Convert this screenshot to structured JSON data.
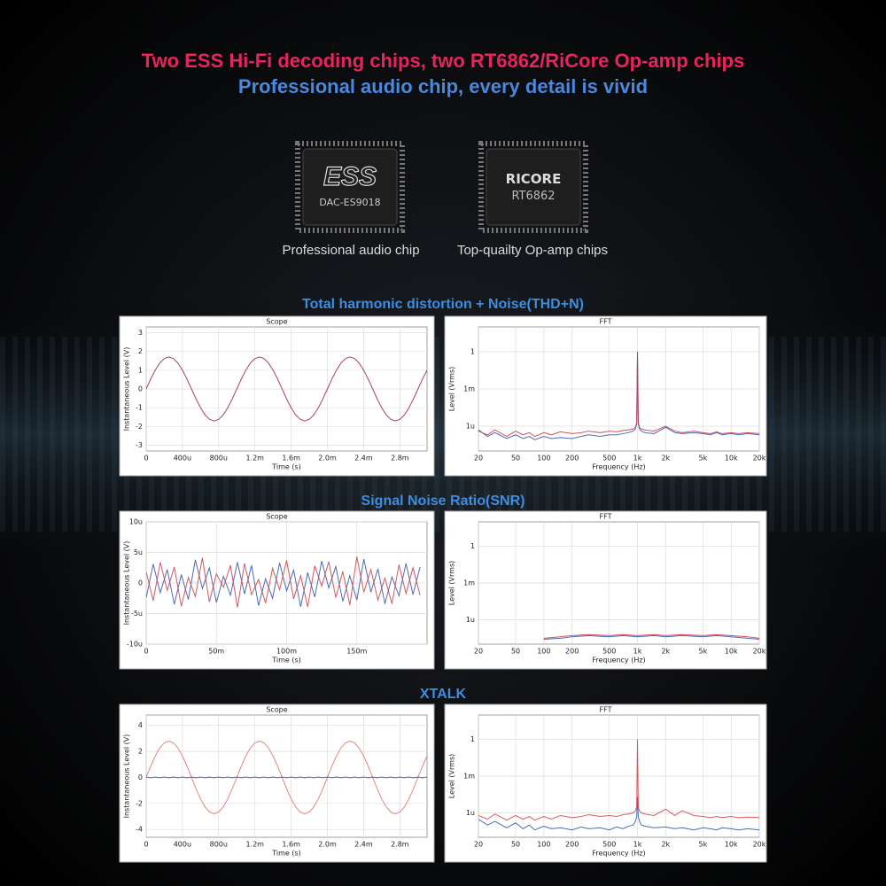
{
  "header": {
    "line1": "Two ESS Hi-Fi decoding chips, two RT6862/RiCore Op-amp chips",
    "line2": "Professional audio chip, every detail is vivid"
  },
  "chips": [
    {
      "logo": "ESS",
      "model": "DAC-ES9018",
      "caption": "Professional audio chip"
    },
    {
      "logo": "RICORE",
      "model": "RT6862",
      "caption": "Top-quailty Op-amp chips"
    }
  ],
  "sections": [
    "Total harmonic distortion + Noise(THD+N)",
    "Signal Noise Ratio(SNR)",
    "XTALK"
  ],
  "chart_data": [
    {
      "type": "line",
      "title": "Scope",
      "xlabel": "Time (s)",
      "ylabel": "Instantaneous Level (V)",
      "grid": true,
      "xlim": [
        0,
        0.0031
      ],
      "ylim": [
        -3.3,
        3.3
      ],
      "xticks": [
        0,
        {
          "value": 0.0004,
          "label": "400u"
        },
        {
          "value": 0.0008,
          "label": "800u"
        },
        {
          "value": 0.0012,
          "label": "1.2m"
        },
        {
          "value": 0.0016,
          "label": "1.6m"
        },
        {
          "value": 0.002,
          "label": "2.0m"
        },
        {
          "value": 0.0024,
          "label": "2.4m"
        },
        {
          "value": 0.0028,
          "label": "2.8m"
        }
      ],
      "yticks": [
        -3,
        -2,
        -1,
        0,
        1,
        2,
        3
      ],
      "x": [
        0,
        5e-05,
        0.0001,
        0.00015,
        0.0002,
        0.00025,
        0.0003,
        0.00035,
        0.0004,
        0.00045,
        0.0005,
        0.00055,
        0.0006,
        0.00065,
        0.0007,
        0.00075,
        0.0008,
        0.00085,
        0.0009,
        0.00095,
        0.001,
        0.00105,
        0.0011,
        0.00115,
        0.0012,
        0.00125,
        0.0013,
        0.00135,
        0.0014,
        0.00145,
        0.0015,
        0.00155,
        0.0016,
        0.00165,
        0.0017,
        0.00175,
        0.0018,
        0.00185,
        0.0019,
        0.00195,
        0.002,
        0.00205,
        0.0021,
        0.00215,
        0.0022,
        0.00225,
        0.0023,
        0.00235,
        0.0024,
        0.00245,
        0.0025,
        0.00255,
        0.0026,
        0.00265,
        0.0027,
        0.00275,
        0.0028,
        0.00285,
        0.0029,
        0.00295,
        0.003,
        0.00305,
        0.0031
      ],
      "series": [
        {
          "color": "#a03050",
          "values": [
            0,
            0.53,
            1.0,
            1.38,
            1.62,
            1.7,
            1.62,
            1.38,
            1.0,
            0.53,
            0,
            -0.53,
            -1.0,
            -1.38,
            -1.62,
            -1.7,
            -1.62,
            -1.38,
            -1.0,
            -0.53,
            0,
            0.53,
            1.0,
            1.38,
            1.62,
            1.7,
            1.62,
            1.38,
            1.0,
            0.53,
            0,
            -0.53,
            -1.0,
            -1.38,
            -1.62,
            -1.7,
            -1.62,
            -1.38,
            -1.0,
            -0.53,
            0,
            0.53,
            1.0,
            1.38,
            1.62,
            1.7,
            1.62,
            1.38,
            1.0,
            0.53,
            0,
            -0.53,
            -1.0,
            -1.38,
            -1.62,
            -1.7,
            -1.62,
            -1.38,
            -1.0,
            -0.53,
            0,
            0.53,
            1.0
          ]
        }
      ]
    },
    {
      "type": "line",
      "title": "FFT",
      "xlabel": "Frequency (Hz)",
      "ylabel": "Level (Vrms)",
      "grid": true,
      "xscale": "log",
      "yscale": "log",
      "xlim": [
        20,
        20000
      ],
      "ylim": [
        1e-08,
        100
      ],
      "xticks": [
        20,
        50,
        100,
        200,
        500,
        {
          "value": 1000,
          "label": "1k"
        },
        {
          "value": 2000,
          "label": "2k"
        },
        {
          "value": 5000,
          "label": "5k"
        },
        {
          "value": 10000,
          "label": "10k"
        },
        {
          "value": 20000,
          "label": "20k"
        }
      ],
      "yticks": [
        1,
        {
          "value": 0.001,
          "label": "1m"
        },
        {
          "value": 1e-06,
          "label": "1u"
        }
      ],
      "x": [
        20,
        25,
        30,
        40,
        50,
        60,
        70,
        80,
        100,
        120,
        150,
        200,
        250,
        300,
        400,
        500,
        600,
        700,
        800,
        900,
        950,
        980,
        1000,
        1020,
        1050,
        1100,
        1200,
        1500,
        2000,
        2500,
        3000,
        4000,
        5000,
        6000,
        7000,
        8000,
        10000,
        12000,
        15000,
        20000
      ],
      "series": [
        {
          "color": "#3a5ab0",
          "values": [
            5e-07,
            1.5e-07,
            3e-07,
            1e-07,
            2e-07,
            1e-07,
            1.5e-07,
            8e-08,
            1.5e-07,
            1e-07,
            1.2e-07,
            1e-07,
            1.5e-07,
            2e-07,
            1.5e-07,
            2e-07,
            2e-07,
            2.5e-07,
            3e-07,
            4e-07,
            6e-07,
            1.5e-06,
            1,
            1.5e-06,
            6e-07,
            4e-07,
            3e-07,
            2.5e-07,
            8e-07,
            3e-07,
            2.5e-07,
            3e-07,
            2.5e-07,
            2e-07,
            3e-07,
            2e-07,
            2.5e-07,
            2e-07,
            2.5e-07,
            2e-07
          ]
        },
        {
          "color": "#c8404c",
          "values": [
            4e-07,
            2e-07,
            5e-07,
            1.5e-07,
            4e-07,
            2e-07,
            3e-07,
            1.5e-07,
            3e-07,
            2e-07,
            3.5e-07,
            2.5e-07,
            3e-07,
            4e-07,
            3e-07,
            4e-07,
            3.5e-07,
            4.5e-07,
            5e-07,
            6e-07,
            8e-07,
            2e-06,
            1,
            2e-06,
            8e-07,
            6e-07,
            5e-07,
            4e-07,
            1e-06,
            4e-07,
            3e-07,
            4e-07,
            3e-07,
            2.5e-07,
            3.5e-07,
            2.5e-07,
            3e-07,
            2.5e-07,
            3e-07,
            2.5e-07
          ]
        }
      ]
    },
    {
      "type": "line",
      "title": "Scope",
      "xlabel": "Time (s)",
      "ylabel": "Instantaneous Level (V)",
      "grid": true,
      "xlim": [
        0,
        0.2
      ],
      "ylim": [
        -1e-05,
        1e-05
      ],
      "xticks": [
        0,
        {
          "value": 0.05,
          "label": "50m"
        },
        {
          "value": 0.1,
          "label": "100m"
        },
        {
          "value": 0.15,
          "label": "150m"
        }
      ],
      "yticks": [
        {
          "value": -1e-05,
          "label": "-10u"
        },
        {
          "value": -5e-06,
          "label": "-5u"
        },
        0,
        {
          "value": 5e-06,
          "label": "5u"
        },
        {
          "value": 1e-05,
          "label": "10u"
        }
      ],
      "x": [
        0,
        0.005,
        0.01,
        0.015,
        0.02,
        0.025,
        0.03,
        0.035,
        0.04,
        0.045,
        0.05,
        0.055,
        0.06,
        0.065,
        0.07,
        0.075,
        0.08,
        0.085,
        0.09,
        0.095,
        0.1,
        0.105,
        0.11,
        0.115,
        0.12,
        0.125,
        0.13,
        0.135,
        0.14,
        0.145,
        0.15,
        0.155,
        0.16,
        0.165,
        0.17,
        0.175,
        0.18,
        0.185,
        0.19,
        0.195
      ],
      "series": [
        {
          "color": "#3a5ab0",
          "values": [
            -2.4e-06,
            3.1e-06,
            -1.6e-06,
            2.2e-06,
            -3.5e-06,
            1.4e-06,
            -2.7e-06,
            3.8e-06,
            -9e-07,
            2.5e-06,
            -3.2e-06,
            1.1e-06,
            -2e-06,
            3.4e-06,
            -1.8e-06,
            2.9e-06,
            -3.7e-06,
            7e-07,
            -2.5e-06,
            3.3e-06,
            -1.3e-06,
            2.1e-06,
            -3.9e-06,
            1.7e-06,
            -2.3e-06,
            3.6e-06,
            -8e-07,
            2.7e-06,
            -3e-06,
            1.2e-06,
            -2.8e-06,
            3.9e-06,
            -1.5e-06,
            2.3e-06,
            -3.4e-06,
            1e-06,
            -2.1e-06,
            3.2e-06,
            -1.9e-06,
            2.6e-06
          ]
        },
        {
          "color": "#d0454f",
          "values": [
            1.8e-06,
            -2.9e-06,
            3.4e-06,
            -1.2e-06,
            2.6e-06,
            -3.8e-06,
            9e-07,
            -2.2e-06,
            4.1e-06,
            -3.1e-06,
            1.5e-06,
            -7e-07,
            2.9e-06,
            -4e-06,
            3.2e-06,
            -1.9e-06,
            6e-07,
            -3.3e-06,
            2.4e-06,
            -1.1e-06,
            3.7e-06,
            -2.6e-06,
            1.2e-06,
            -3.9e-06,
            2.8e-06,
            -5e-07,
            3.5e-06,
            -2.4e-06,
            1.9e-06,
            -3.6e-06,
            4.3e-06,
            -1.5e-06,
            2.2e-06,
            -2.8e-06,
            8e-07,
            -3.4e-06,
            3e-06,
            -1.7e-06,
            2.5e-06,
            -2e-06
          ]
        }
      ]
    },
    {
      "type": "line",
      "title": "FFT",
      "xlabel": "Frequency (Hz)",
      "ylabel": "Level (Vrms)",
      "grid": true,
      "xscale": "log",
      "yscale": "log",
      "xlim": [
        20,
        20000
      ],
      "ylim": [
        1e-08,
        100
      ],
      "xticks": [
        20,
        50,
        100,
        200,
        500,
        {
          "value": 1000,
          "label": "1k"
        },
        {
          "value": 2000,
          "label": "2k"
        },
        {
          "value": 5000,
          "label": "5k"
        },
        {
          "value": 10000,
          "label": "10k"
        },
        {
          "value": 20000,
          "label": "20k"
        }
      ],
      "yticks": [
        1,
        {
          "value": 0.001,
          "label": "1m"
        },
        {
          "value": 1e-06,
          "label": "1u"
        }
      ],
      "x": [
        100,
        150,
        200,
        300,
        500,
        700,
        1000,
        1500,
        2000,
        3000,
        5000,
        7000,
        10000,
        15000,
        20000
      ],
      "series": [
        {
          "color": "#3a5ab0",
          "values": [
            2.5e-08,
            3e-08,
            4e-08,
            5e-08,
            4e-08,
            5e-08,
            4e-08,
            5e-08,
            4e-08,
            5e-08,
            4e-08,
            5e-08,
            4e-08,
            3e-08,
            2.5e-08
          ]
        },
        {
          "color": "#c8404c",
          "values": [
            3e-08,
            4e-08,
            5e-08,
            6e-08,
            5e-08,
            6e-08,
            5e-08,
            6e-08,
            5e-08,
            6e-08,
            5e-08,
            6e-08,
            5e-08,
            4e-08,
            3e-08
          ]
        }
      ]
    },
    {
      "type": "line",
      "title": "Scope",
      "xlabel": "Time (s)",
      "ylabel": "Instantaneous Level (V)",
      "grid": true,
      "xlim": [
        0,
        0.0031
      ],
      "ylim": [
        -4.6,
        4.8
      ],
      "xticks": [
        0,
        {
          "value": 0.0004,
          "label": "400u"
        },
        {
          "value": 0.0008,
          "label": "800u"
        },
        {
          "value": 0.0012,
          "label": "1.2m"
        },
        {
          "value": 0.0016,
          "label": "1.6m"
        },
        {
          "value": 0.002,
          "label": "2.0m"
        },
        {
          "value": 0.0024,
          "label": "2.4m"
        },
        {
          "value": 0.0028,
          "label": "2.8m"
        }
      ],
      "yticks": [
        -4,
        -2,
        0,
        2,
        4
      ],
      "x": [
        0,
        5e-05,
        0.0001,
        0.00015,
        0.0002,
        0.00025,
        0.0003,
        0.00035,
        0.0004,
        0.00045,
        0.0005,
        0.00055,
        0.0006,
        0.00065,
        0.0007,
        0.00075,
        0.0008,
        0.00085,
        0.0009,
        0.00095,
        0.001,
        0.00105,
        0.0011,
        0.00115,
        0.0012,
        0.00125,
        0.0013,
        0.00135,
        0.0014,
        0.00145,
        0.0015,
        0.00155,
        0.0016,
        0.00165,
        0.0017,
        0.00175,
        0.0018,
        0.00185,
        0.0019,
        0.00195,
        0.002,
        0.00205,
        0.0021,
        0.00215,
        0.0022,
        0.00225,
        0.0023,
        0.00235,
        0.0024,
        0.00245,
        0.0025,
        0.00255,
        0.0026,
        0.00265,
        0.0027,
        0.00275,
        0.0028,
        0.00285,
        0.0029,
        0.00295,
        0.003,
        0.00305,
        0.0031
      ],
      "series": [
        {
          "color": "#e07a70",
          "values": [
            0,
            0.87,
            1.65,
            2.27,
            2.66,
            2.8,
            2.66,
            2.27,
            1.65,
            0.87,
            0,
            -0.87,
            -1.65,
            -2.27,
            -2.66,
            -2.8,
            -2.66,
            -2.27,
            -1.65,
            -0.87,
            0,
            0.87,
            1.65,
            2.27,
            2.66,
            2.8,
            2.66,
            2.27,
            1.65,
            0.87,
            0,
            -0.87,
            -1.65,
            -2.27,
            -2.66,
            -2.8,
            -2.66,
            -2.27,
            -1.65,
            -0.87,
            0,
            0.87,
            1.65,
            2.27,
            2.66,
            2.8,
            2.66,
            2.27,
            1.65,
            0.87,
            0,
            -0.87,
            -1.65,
            -2.27,
            -2.66,
            -2.8,
            -2.66,
            -2.27,
            -1.65,
            -0.87,
            0,
            0.87,
            1.65
          ]
        },
        {
          "color": "#3a5ab0",
          "values": [
            0.03,
            -0.03,
            0.03,
            -0.03,
            0.03,
            -0.03,
            0.03,
            -0.03,
            0.03,
            -0.03,
            0.03,
            -0.03,
            0.03,
            -0.03,
            0.03,
            -0.03,
            0.03,
            -0.03,
            0.03,
            -0.03,
            0.03,
            -0.03,
            0.03,
            -0.03,
            0.03,
            -0.03,
            0.03,
            -0.03,
            0.03,
            -0.03,
            0.03,
            -0.03,
            0.03,
            -0.03,
            0.03,
            -0.03,
            0.03,
            -0.03,
            0.03,
            -0.03,
            0.03,
            -0.03,
            0.03,
            -0.03,
            0.03,
            -0.03,
            0.03,
            -0.03,
            0.03,
            -0.03,
            0.03,
            -0.03,
            0.03,
            -0.03,
            0.03,
            -0.03,
            0.03,
            -0.03,
            0.03,
            -0.03,
            0.03,
            -0.03,
            0.03
          ]
        }
      ]
    },
    {
      "type": "line",
      "title": "FFT",
      "xlabel": "Frequency (Hz)",
      "ylabel": "Level (Vrms)",
      "grid": true,
      "xscale": "log",
      "yscale": "log",
      "xlim": [
        20,
        20000
      ],
      "ylim": [
        1e-08,
        100
      ],
      "xticks": [
        20,
        50,
        100,
        200,
        500,
        {
          "value": 1000,
          "label": "1k"
        },
        {
          "value": 2000,
          "label": "2k"
        },
        {
          "value": 5000,
          "label": "5k"
        },
        {
          "value": 10000,
          "label": "10k"
        },
        {
          "value": 20000,
          "label": "20k"
        }
      ],
      "yticks": [
        1,
        {
          "value": 0.001,
          "label": "1m"
        },
        {
          "value": 1e-06,
          "label": "1u"
        }
      ],
      "x": [
        20,
        25,
        30,
        40,
        50,
        60,
        70,
        80,
        100,
        120,
        150,
        200,
        250,
        300,
        400,
        500,
        600,
        700,
        800,
        900,
        950,
        980,
        1000,
        1020,
        1050,
        1100,
        1200,
        1500,
        2000,
        2500,
        3000,
        4000,
        5000,
        6000,
        7000,
        8000,
        10000,
        12000,
        15000,
        20000
      ],
      "series": [
        {
          "color": "#3a5ab0",
          "values": [
            3e-07,
            1e-07,
            2e-07,
            6e-08,
            1.5e-07,
            5e-08,
            1e-07,
            4e-08,
            8e-08,
            5e-08,
            6e-08,
            4e-08,
            7e-08,
            5e-08,
            6e-08,
            4e-08,
            7e-08,
            5e-08,
            8e-08,
            1e-07,
            2e-07,
            5e-07,
            2e-05,
            5e-07,
            2e-07,
            1e-07,
            8e-08,
            6e-08,
            7e-08,
            5e-08,
            6e-08,
            4e-08,
            6e-08,
            5e-08,
            4e-08,
            6e-08,
            5e-08,
            4e-08,
            5e-08,
            4e-08
          ]
        },
        {
          "color": "#d8484e",
          "values": [
            6e-07,
            3e-07,
            8e-07,
            2.5e-07,
            6e-07,
            3e-07,
            5e-07,
            2.5e-07,
            5e-07,
            3e-07,
            6e-07,
            4e-07,
            5e-07,
            7e-07,
            5e-07,
            6e-07,
            5e-07,
            7e-07,
            8e-07,
            1e-06,
            1.5e-06,
            3e-06,
            1,
            3e-06,
            1.5e-06,
            1e-06,
            8e-07,
            6e-07,
            2e-06,
            6e-07,
            1.5e-06,
            6e-07,
            5e-07,
            4e-07,
            5e-07,
            4e-07,
            5e-07,
            4e-07,
            4.5e-07,
            4e-07
          ]
        }
      ]
    }
  ]
}
